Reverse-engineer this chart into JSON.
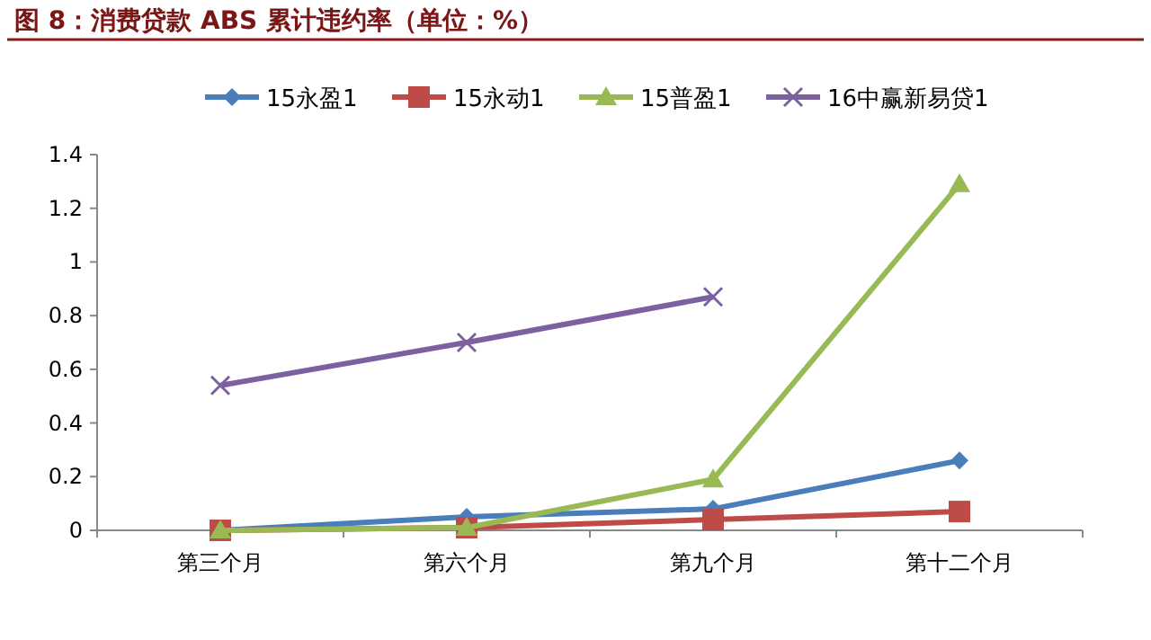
{
  "chart_data": {
    "type": "line",
    "title": "图 8：消费贷款 ABS 累计违约率（单位：%）",
    "categories": [
      "第三个月",
      "第六个月",
      "第九个月",
      "第十二个月"
    ],
    "series": [
      {
        "name": "15永盈1",
        "color": "#4a7ebb",
        "marker": "diamond",
        "values": [
          0,
          0.05,
          0.08,
          0.26
        ]
      },
      {
        "name": "15永动1",
        "color": "#be4b48",
        "marker": "square",
        "values": [
          0,
          0.01,
          0.04,
          0.07
        ]
      },
      {
        "name": "15普盈1",
        "color": "#98b954",
        "marker": "triangle",
        "values": [
          0,
          0.01,
          0.19,
          1.29
        ]
      },
      {
        "name": "16中赢新易贷1",
        "color": "#7d60a0",
        "marker": "cross",
        "values": [
          0.54,
          0.7,
          0.87,
          null
        ]
      }
    ],
    "ylim": [
      0,
      1.4
    ],
    "yticks": [
      0,
      0.2,
      0.4,
      0.6,
      0.8,
      1,
      1.2,
      1.4
    ],
    "grid": false,
    "legend": "top"
  }
}
